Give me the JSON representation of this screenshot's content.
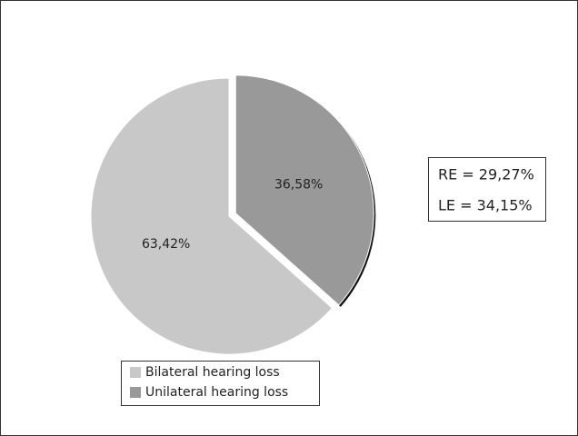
{
  "chart_data": {
    "type": "pie",
    "categories": [
      "Bilateral hearing loss",
      "Unilateral hearing loss"
    ],
    "values": [
      63.42,
      36.58
    ],
    "value_labels": [
      "63,42%",
      "36,58%"
    ],
    "colors": [
      "#c8c8c8",
      "#999999"
    ],
    "explode": [
      false,
      true
    ],
    "annotations": [
      "RE = 29,27%",
      "LE = 34,15%"
    ]
  }
}
